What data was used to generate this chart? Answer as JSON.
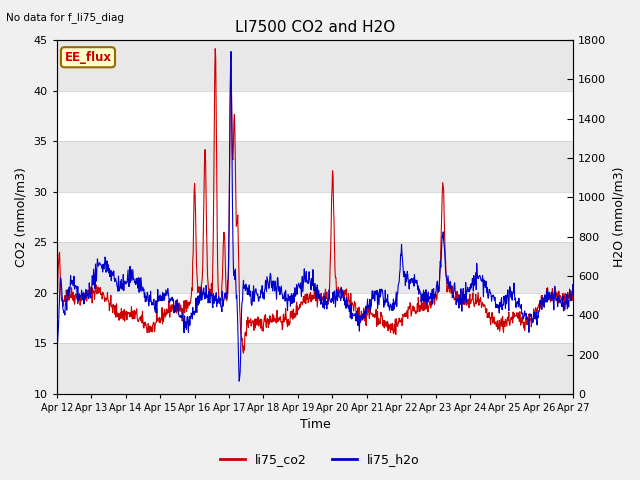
{
  "title": "LI7500 CO2 and H2O",
  "top_left_text": "No data for f_li75_diag",
  "xlabel": "Time",
  "ylabel_left": "CO2 (mmol/m3)",
  "ylabel_right": "H2O (mmol/m3)",
  "ylim_left": [
    10,
    45
  ],
  "ylim_right": [
    0,
    1800
  ],
  "yticks_left": [
    10,
    15,
    20,
    25,
    30,
    35,
    40,
    45
  ],
  "yticks_right": [
    0,
    200,
    400,
    600,
    800,
    1000,
    1200,
    1400,
    1600,
    1800
  ],
  "x_tick_labels": [
    "Apr 12",
    "Apr 13",
    "Apr 14",
    "Apr 15",
    "Apr 16",
    "Apr 17",
    "Apr 18",
    "Apr 19",
    "Apr 20",
    "Apr 21",
    "Apr 22",
    "Apr 23",
    "Apr 24",
    "Apr 25",
    "Apr 26",
    "Apr 27"
  ],
  "color_co2": "#cc0000",
  "color_h2o": "#0000cc",
  "legend_labels": [
    "li75_co2",
    "li75_h2o"
  ],
  "ee_flux_label": "EE_flux",
  "ee_flux_bg": "#ffffcc",
  "ee_flux_border_color": "#996600",
  "ee_flux_text_color": "#cc0000",
  "bg_color": "#f0f0f0",
  "plot_bg_color": "#ffffff",
  "band_color_light": "#ffffff",
  "band_color_dark": "#e8e8e8",
  "title_fontsize": 11,
  "label_fontsize": 9,
  "tick_fontsize": 8,
  "linewidth": 0.8
}
